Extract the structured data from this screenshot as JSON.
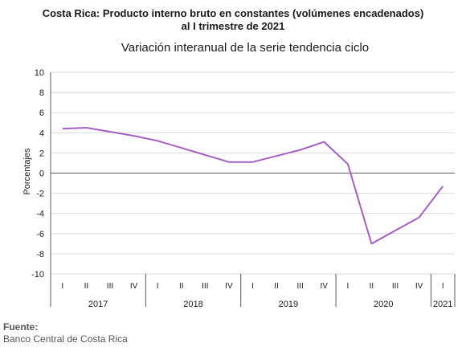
{
  "title_line1": "Costa Rica: Producto interno bruto en constantes (volúmenes encadenados)",
  "title_line2": "al I trimestre de 2021",
  "subtitle": "Variación interanual de la serie tendencia ciclo",
  "source_label": "Fuente:",
  "source_text": "Banco Central de Costa Rica",
  "colors": {
    "line": "#a35fc1",
    "grid": "#d9d9d9",
    "axis": "#595959",
    "text": "#1a1a1a"
  },
  "chart_data": {
    "type": "line",
    "ylabel": "Porcentajes",
    "xlabel": "",
    "ylim": [
      -10,
      10
    ],
    "yticks": [
      10,
      8,
      6,
      4,
      2,
      0,
      -2,
      -4,
      -6,
      -8,
      -10
    ],
    "grid": true,
    "categories": [
      "I",
      "II",
      "III",
      "IV",
      "I",
      "II",
      "III",
      "IV",
      "I",
      "II",
      "III",
      "IV",
      "I",
      "II",
      "III",
      "IV",
      "I"
    ],
    "years": [
      {
        "label": "2017",
        "quarters": 4
      },
      {
        "label": "2018",
        "quarters": 4
      },
      {
        "label": "2019",
        "quarters": 4
      },
      {
        "label": "2020",
        "quarters": 4
      },
      {
        "label": "2021",
        "quarters": 1
      }
    ],
    "series": [
      {
        "values": [
          4.4,
          4.5,
          4.1,
          3.7,
          3.2,
          2.5,
          1.8,
          1.1,
          1.1,
          1.7,
          2.3,
          3.1,
          0.9,
          -7.0,
          -5.7,
          -4.4,
          -1.3
        ]
      }
    ]
  }
}
